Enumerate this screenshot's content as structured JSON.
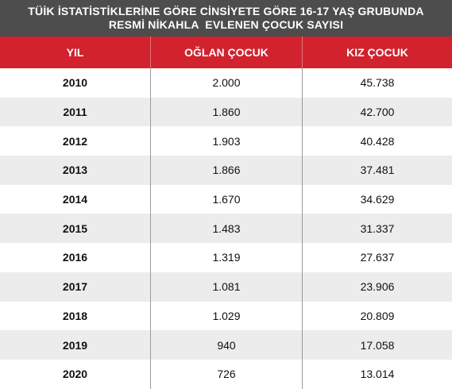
{
  "title": {
    "line1": "TÜİK İSTATİSTİKLERİNE GÖRE CİNSİYETE GÖRE 16-17 YAŞ GRUBUNDA",
    "line2": "RESMİ NİKAHLA  EVLENEN ÇOCUK SAYISI"
  },
  "columns": [
    "YIL",
    "OĞLAN ÇOCUK",
    "KIZ ÇOCUK"
  ],
  "colors": {
    "title_bg": "#4d4d4d",
    "header_bg": "#d1222e",
    "row_alt_bg": "#ececec"
  },
  "chart_data": {
    "type": "table",
    "title": "TÜİK İSTATİSTİKLERİNE GÖRE CİNSİYETE GÖRE 16-17 YAŞ GRUBUNDA RESMİ NİKAHLA  EVLENEN ÇOCUK SAYISI",
    "columns": [
      "YIL",
      "OĞLAN ÇOCUK",
      "KIZ ÇOCUK"
    ],
    "rows": [
      [
        "2010",
        "2.000",
        "45.738"
      ],
      [
        "2011",
        "1.860",
        "42.700"
      ],
      [
        "2012",
        "1.903",
        "40.428"
      ],
      [
        "2013",
        "1.866",
        "37.481"
      ],
      [
        "2014",
        "1.670",
        "34.629"
      ],
      [
        "2015",
        "1.483",
        "31.337"
      ],
      [
        "2016",
        "1.319",
        "27.637"
      ],
      [
        "2017",
        "1.081",
        "23.906"
      ],
      [
        "2018",
        "1.029",
        "20.809"
      ],
      [
        "2019",
        "940",
        "17.058"
      ],
      [
        "2020",
        "726",
        "13.014"
      ]
    ]
  }
}
